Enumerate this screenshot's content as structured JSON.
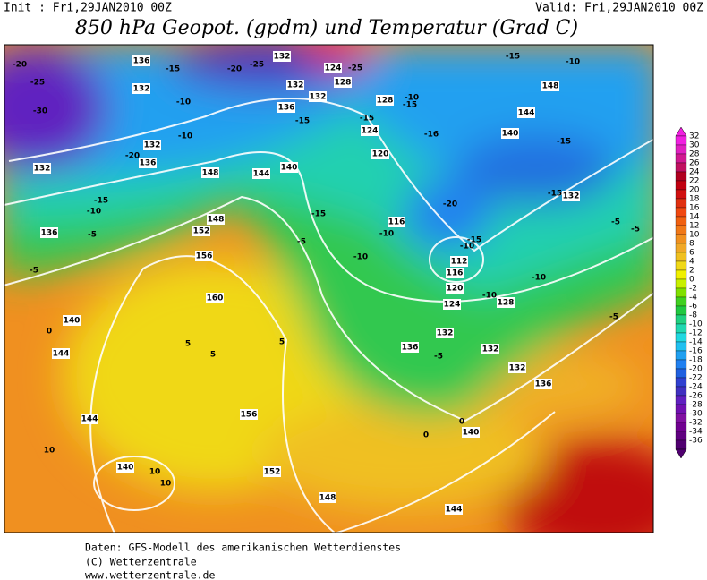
{
  "header": {
    "init": "Init : Fri,29JAN2010 00Z",
    "valid": "Valid: Fri,29JAN2010 00Z",
    "title": "850 hPa Geopot. (gpdm) und Temperatur (Grad C)"
  },
  "map": {
    "labels": [
      "-20",
      "-25",
      "-30",
      "136",
      "-15",
      "132",
      "-10",
      "-10",
      "132",
      "-20",
      "136",
      "132",
      "-15",
      "-10",
      "136",
      "-5",
      "-5",
      "148",
      "144",
      "140",
      "148",
      "152",
      "156",
      "160",
      "140",
      "144",
      "156",
      "152",
      "148",
      "144",
      "140",
      "144",
      "140",
      "10",
      "10",
      "10",
      "128",
      "124",
      "120",
      "116",
      "112",
      "116",
      "120",
      "124",
      "128",
      "132",
      "136",
      "132",
      "132",
      "136",
      "140",
      "144",
      "148",
      "-15",
      "-10",
      "-15",
      "-15",
      "132",
      "-5",
      "-5",
      "-16",
      "-20",
      "-15",
      "-10",
      "-10",
      "-10",
      "-5",
      "-15",
      "-5",
      "-10",
      "-10",
      "-15",
      "-15",
      "-20",
      "-25",
      "-25",
      "124",
      "128",
      "132",
      "132",
      "136",
      "0",
      "0",
      "0",
      "5",
      "5",
      "5",
      "-5",
      "-10",
      "-15",
      "132"
    ]
  },
  "legend": {
    "ticks": [
      32,
      30,
      28,
      26,
      24,
      22,
      20,
      18,
      16,
      14,
      12,
      10,
      8,
      6,
      4,
      2,
      0,
      -2,
      -4,
      -6,
      -8,
      -10,
      -12,
      -14,
      -16,
      -18,
      -20,
      -22,
      -24,
      -26,
      -28,
      -30,
      -32,
      -34,
      -36
    ],
    "colors": [
      "#f020e0",
      "#e020c0",
      "#d01890",
      "#c01060",
      "#b00020",
      "#c00010",
      "#d01010",
      "#e03010",
      "#f04810",
      "#f06010",
      "#f07818",
      "#f09020",
      "#f0a828",
      "#f0c020",
      "#f0d818",
      "#f0f000",
      "#c8f000",
      "#80e000",
      "#40d020",
      "#20c840",
      "#20d080",
      "#20d8b0",
      "#20d8e0",
      "#20c0f0",
      "#20a0f0",
      "#2080f0",
      "#2060e0",
      "#3040d0",
      "#4030c0",
      "#6020c0",
      "#7010b0",
      "#8010a0",
      "#700090",
      "#600080",
      "#500070"
    ]
  },
  "footer": {
    "line1": "Daten: GFS-Modell des amerikanischen Wetterdienstes",
    "line2": "(C) Wetterzentrale",
    "line3": "www.wetterzentrale.de"
  }
}
